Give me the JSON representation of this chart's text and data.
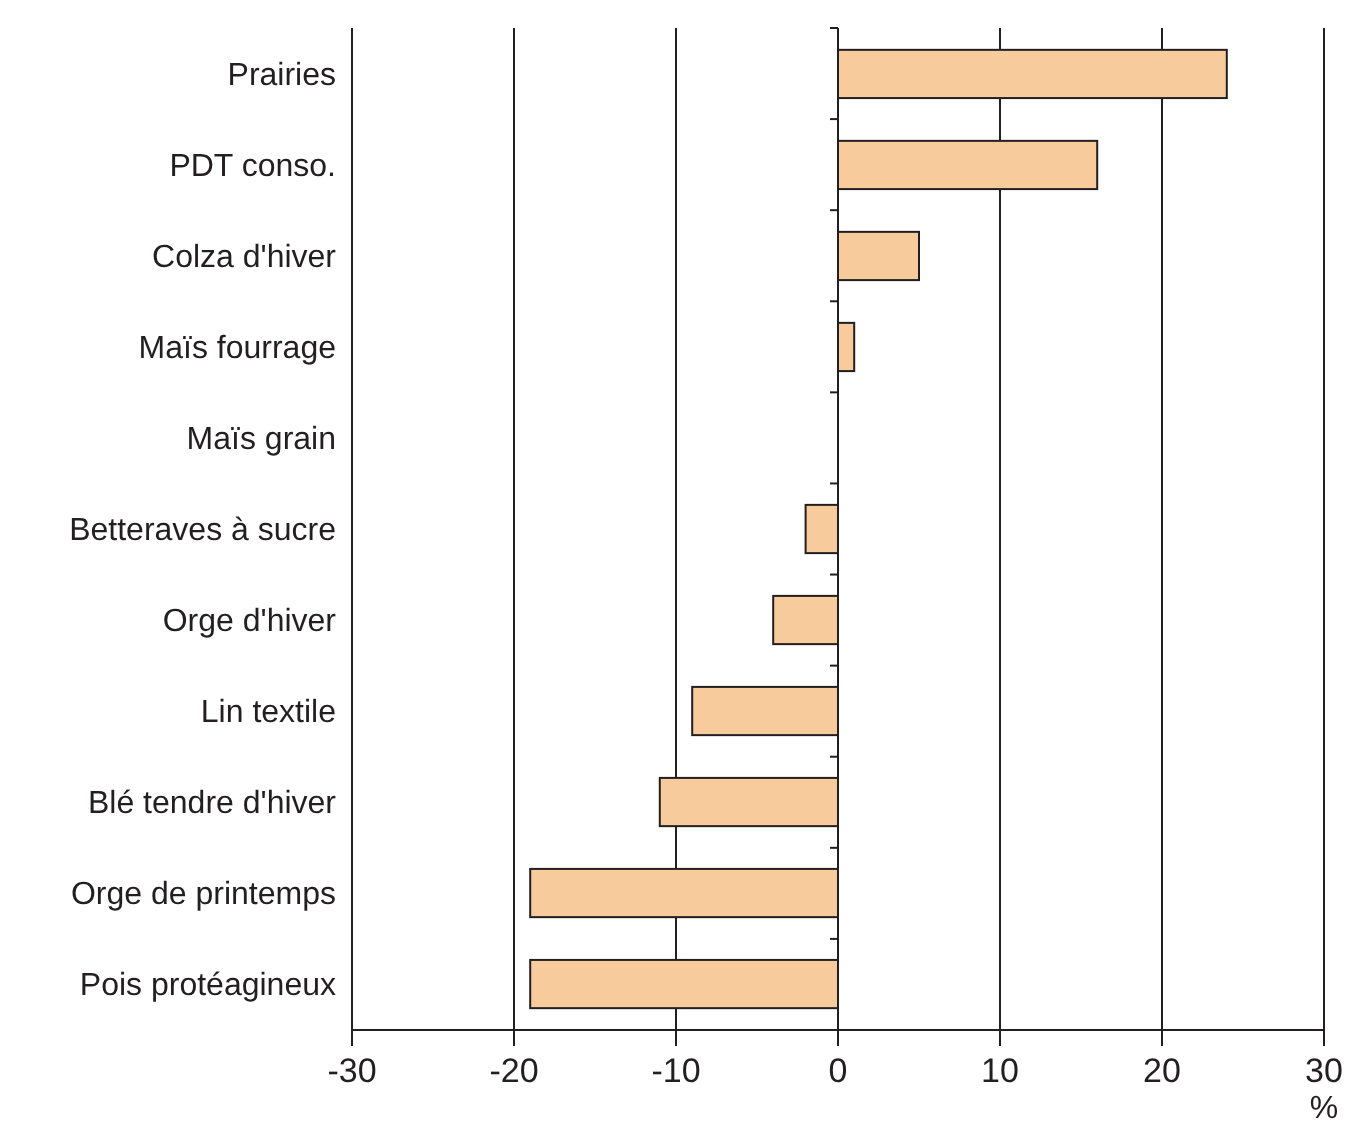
{
  "chart_data": {
    "type": "bar",
    "orientation": "horizontal",
    "xlabel": "%",
    "categories": [
      "Prairies",
      "PDT conso.",
      "Colza d'hiver",
      "Maïs fourrage",
      "Maïs grain",
      "Betteraves à sucre",
      "Orge d'hiver",
      "Lin textile",
      "Blé tendre d'hiver",
      "Orge de printemps",
      "Pois protéagineux"
    ],
    "values": [
      24,
      16,
      5,
      1,
      0,
      -2,
      -4,
      -9,
      -11,
      -19,
      -19
    ],
    "color": "#f8cb9c",
    "xlim": [
      -30,
      30
    ],
    "xticks": [
      -30,
      -20,
      -10,
      0,
      10,
      20,
      30
    ],
    "grid": "x"
  }
}
